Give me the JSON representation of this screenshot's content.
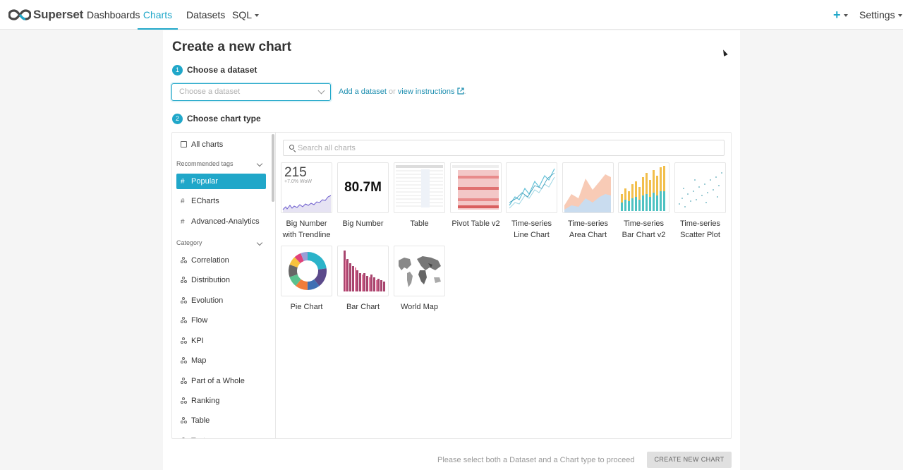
{
  "nav": {
    "brand": "Superset",
    "items": [
      {
        "label": "Dashboards"
      },
      {
        "label": "Charts"
      },
      {
        "label": "Datasets"
      },
      {
        "label": "SQL"
      }
    ],
    "plus_label": "+",
    "settings_label": "Settings"
  },
  "page": {
    "title": "Create a new chart",
    "step1": {
      "num": "1",
      "label": "Choose a dataset"
    },
    "step2": {
      "num": "2",
      "label": "Choose chart type"
    },
    "dataset_placeholder": "Choose a dataset",
    "add_dataset": "Add a dataset",
    "or_text": "or",
    "view_instructions": "view instructions",
    "period": "."
  },
  "sidebar": {
    "all_charts": "All charts",
    "recommended_tags": "Recommended tags",
    "tags": [
      {
        "label": "Popular",
        "selected": true
      },
      {
        "label": "ECharts"
      },
      {
        "label": "Advanced-Analytics"
      }
    ],
    "category_heading": "Category",
    "categories": [
      {
        "label": "Correlation"
      },
      {
        "label": "Distribution"
      },
      {
        "label": "Evolution"
      },
      {
        "label": "Flow"
      },
      {
        "label": "KPI"
      },
      {
        "label": "Map"
      },
      {
        "label": "Part of a Whole"
      },
      {
        "label": "Ranking"
      },
      {
        "label": "Table"
      },
      {
        "label": "Text"
      }
    ]
  },
  "search": {
    "placeholder": "Search all charts"
  },
  "charts": [
    {
      "label": "Big Number with Trendline",
      "line1": "Big Number",
      "line2": "with Trendline",
      "thumb_number": "215",
      "thumb_sub": "+7.0% WoW"
    },
    {
      "label": "Big Number",
      "line1": "Big Number",
      "line2": "",
      "thumb_number": "80.7M"
    },
    {
      "label": "Table",
      "line1": "Table",
      "line2": ""
    },
    {
      "label": "Pivot Table v2",
      "line1": "Pivot Table v2",
      "line2": ""
    },
    {
      "label": "Time-series Line Chart",
      "line1": "Time-series",
      "line2": "Line Chart"
    },
    {
      "label": "Time-series Area Chart",
      "line1": "Time-series",
      "line2": "Area Chart"
    },
    {
      "label": "Time-series Bar Chart v2",
      "line1": "Time-series",
      "line2": "Bar Chart v2"
    },
    {
      "label": "Time-series Scatter Plot",
      "line1": "Time-series",
      "line2": "Scatter Plot"
    },
    {
      "label": "Pie Chart",
      "line1": "Pie Chart",
      "line2": ""
    },
    {
      "label": "Bar Chart",
      "line1": "Bar Chart",
      "line2": ""
    },
    {
      "label": "World Map",
      "line1": "World Map",
      "line2": ""
    }
  ],
  "footer": {
    "message": "Please select both a Dataset and a Chart type to proceed",
    "create_button": "CREATE NEW CHART"
  },
  "colors": {
    "accent": "#20a7c9",
    "selected_bg": "#20a7c9"
  }
}
